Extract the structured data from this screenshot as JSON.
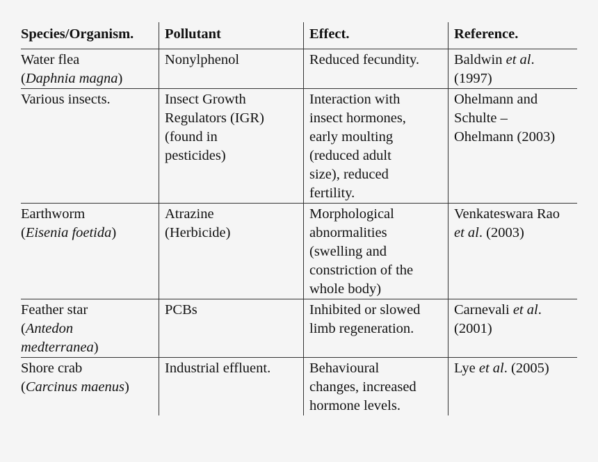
{
  "headers": [
    "Species/Organism.",
    "Pollutant",
    "Effect.",
    "Reference."
  ],
  "rows": [
    {
      "species": [
        [
          "Water flea",
          ""
        ],
        [
          "(",
          "Daphnia magna",
          ")"
        ]
      ],
      "pollutant": [
        "Nonylphenol"
      ],
      "effect": [
        "Reduced fecundity."
      ],
      "reference": [
        [
          "Baldwin ",
          "et al",
          "."
        ],
        [
          "(1997)"
        ]
      ]
    },
    {
      "species": [
        [
          "Various insects."
        ]
      ],
      "pollutant": [
        "Insect Growth",
        "Regulators (IGR)",
        "(found in",
        "pesticides)"
      ],
      "effect": [
        "Interaction with",
        "insect hormones,",
        "early moulting",
        "(reduced adult",
        "size), reduced",
        "fertility."
      ],
      "reference": [
        [
          "Ohelmann and"
        ],
        [
          "Schulte –"
        ],
        [
          "Ohelmann (2003)"
        ]
      ]
    },
    {
      "species": [
        [
          "Earthworm"
        ],
        [
          "(",
          "Eisenia foetida",
          ")"
        ]
      ],
      "pollutant": [
        "Atrazine",
        "(Herbicide)"
      ],
      "effect": [
        "Morphological",
        "abnormalities",
        "(swelling and",
        "constriction of the",
        "whole body)"
      ],
      "reference": [
        [
          "Venkateswara Rao"
        ],
        [
          "",
          "et al",
          ". (2003)"
        ]
      ]
    },
    {
      "species": [
        [
          "Feather star"
        ],
        [
          "(",
          "Antedon",
          ""
        ],
        [
          "",
          "medterranea",
          ")"
        ]
      ],
      "pollutant": [
        "PCBs"
      ],
      "effect": [
        "Inhibited or slowed",
        "limb regeneration."
      ],
      "reference": [
        [
          "Carnevali ",
          "et al",
          "."
        ],
        [
          "(2001)"
        ]
      ]
    },
    {
      "species": [
        [
          "Shore crab"
        ],
        [
          "(",
          "Carcinus maenus",
          ")"
        ]
      ],
      "pollutant": [
        "Industrial effluent."
      ],
      "effect": [
        "Behavioural",
        "changes, increased",
        "hormone levels."
      ],
      "reference": [
        [
          "Lye ",
          "et al",
          ". (2005)"
        ]
      ]
    }
  ]
}
